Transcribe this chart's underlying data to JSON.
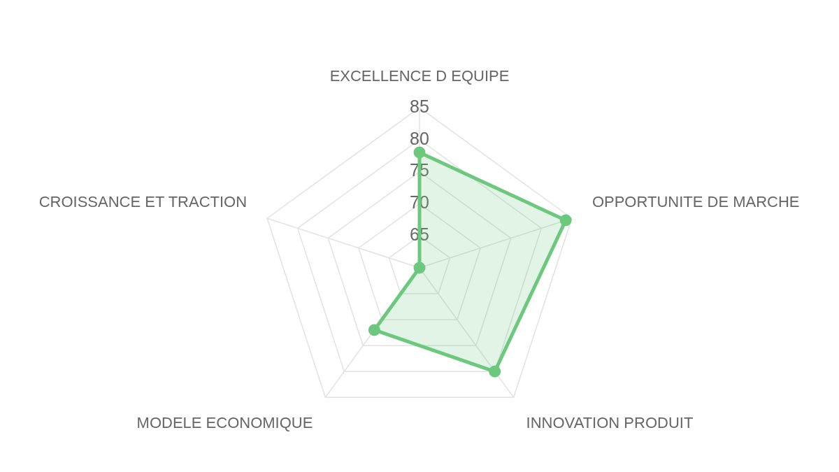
{
  "chart_data": {
    "type": "radar",
    "categories": [
      "EXCELLENCE D EQUIPE",
      "OPPORTUNITE DE MARCHE",
      "INNOVATION PRODUIT",
      "MODELE ECONOMIQUE",
      "CROISSANCE ET TRACTION"
    ],
    "series": [
      {
        "color": "#6cc87c",
        "values": [
          78,
          84,
          80,
          72,
          60
        ]
      }
    ],
    "ylim": [
      60,
      85
    ],
    "yticks": [
      65,
      70,
      75,
      80,
      85
    ],
    "grid": true,
    "marker": "circle"
  }
}
